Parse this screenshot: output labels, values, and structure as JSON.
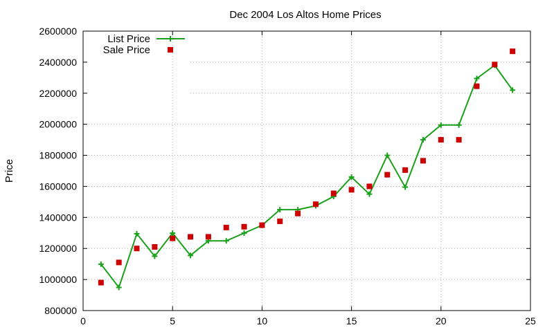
{
  "chart_data": {
    "type": "line",
    "title": "Dec 2004 Los Altos Home Prices",
    "xlabel": "",
    "ylabel": "Price",
    "xlim": [
      0,
      25
    ],
    "ylim": [
      800000,
      2600000
    ],
    "x_ticks": [
      "0",
      "5",
      "10",
      "15",
      "20",
      "25"
    ],
    "y_ticks": [
      "800000",
      "1000000",
      "1200000",
      "1400000",
      "1600000",
      "1800000",
      "2000000",
      "2200000",
      "2400000",
      "2600000"
    ],
    "grid": true,
    "legend_position": "top-left",
    "series": [
      {
        "name": "List Price",
        "style": "line-with-plus-markers",
        "color": "#1aa01a",
        "x": [
          1,
          2,
          3,
          4,
          5,
          6,
          7,
          8,
          9,
          10,
          11,
          12,
          13,
          14,
          15,
          16,
          17,
          18,
          19,
          20,
          21,
          22,
          23,
          24
        ],
        "y": [
          1099000,
          949000,
          1295000,
          1150000,
          1299000,
          1155000,
          1249000,
          1249000,
          1299000,
          1349000,
          1450000,
          1450000,
          1475000,
          1535000,
          1660000,
          1550000,
          1800000,
          1595000,
          1900000,
          1995000,
          1995000,
          2295000,
          2380000,
          2220000
        ]
      },
      {
        "name": "Sale Price",
        "style": "square-markers",
        "color": "#cc0000",
        "x": [
          1,
          2,
          3,
          4,
          5,
          6,
          7,
          8,
          9,
          10,
          11,
          12,
          13,
          14,
          15,
          16,
          17,
          18,
          19,
          20,
          21,
          22,
          23,
          24
        ],
        "y": [
          980000,
          1110000,
          1200000,
          1210000,
          1265000,
          1275000,
          1275000,
          1335000,
          1340000,
          1350000,
          1375000,
          1425000,
          1485000,
          1555000,
          1578000,
          1600000,
          1675000,
          1705000,
          1765000,
          1900000,
          1900000,
          2245000,
          2385000,
          2470000
        ]
      }
    ]
  }
}
